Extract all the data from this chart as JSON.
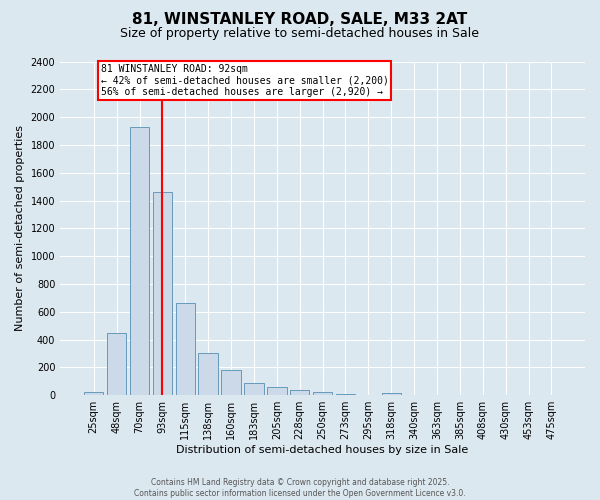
{
  "title": "81, WINSTANLEY ROAD, SALE, M33 2AT",
  "subtitle": "Size of property relative to semi-detached houses in Sale",
  "xlabel": "Distribution of semi-detached houses by size in Sale",
  "ylabel": "Number of semi-detached properties",
  "footer_line1": "Contains HM Land Registry data © Crown copyright and database right 2025.",
  "footer_line2": "Contains public sector information licensed under the Open Government Licence v3.0.",
  "bar_labels": [
    "25sqm",
    "48sqm",
    "70sqm",
    "93sqm",
    "115sqm",
    "138sqm",
    "160sqm",
    "183sqm",
    "205sqm",
    "228sqm",
    "250sqm",
    "273sqm",
    "295sqm",
    "318sqm",
    "340sqm",
    "363sqm",
    "385sqm",
    "408sqm",
    "430sqm",
    "453sqm",
    "475sqm"
  ],
  "bar_values": [
    20,
    450,
    1930,
    1460,
    665,
    305,
    180,
    90,
    60,
    35,
    20,
    10,
    5,
    18,
    3,
    0,
    0,
    0,
    0,
    0,
    0
  ],
  "bar_color": "#ccd9e8",
  "bar_edge_color": "#6699bb",
  "red_line_index": 3,
  "annotation_text_line1": "81 WINSTANLEY ROAD: 92sqm",
  "annotation_text_line2": "← 42% of semi-detached houses are smaller (2,200)",
  "annotation_text_line3": "56% of semi-detached houses are larger (2,920) →",
  "ylim": [
    0,
    2400
  ],
  "yticks": [
    0,
    200,
    400,
    600,
    800,
    1000,
    1200,
    1400,
    1600,
    1800,
    2000,
    2200,
    2400
  ],
  "bg_color": "#dce8f0",
  "plot_bg_color": "#dce8f0",
  "title_fontsize": 11,
  "subtitle_fontsize": 9,
  "ylabel_fontsize": 8,
  "xlabel_fontsize": 8,
  "tick_fontsize": 7,
  "annot_fontsize": 7
}
